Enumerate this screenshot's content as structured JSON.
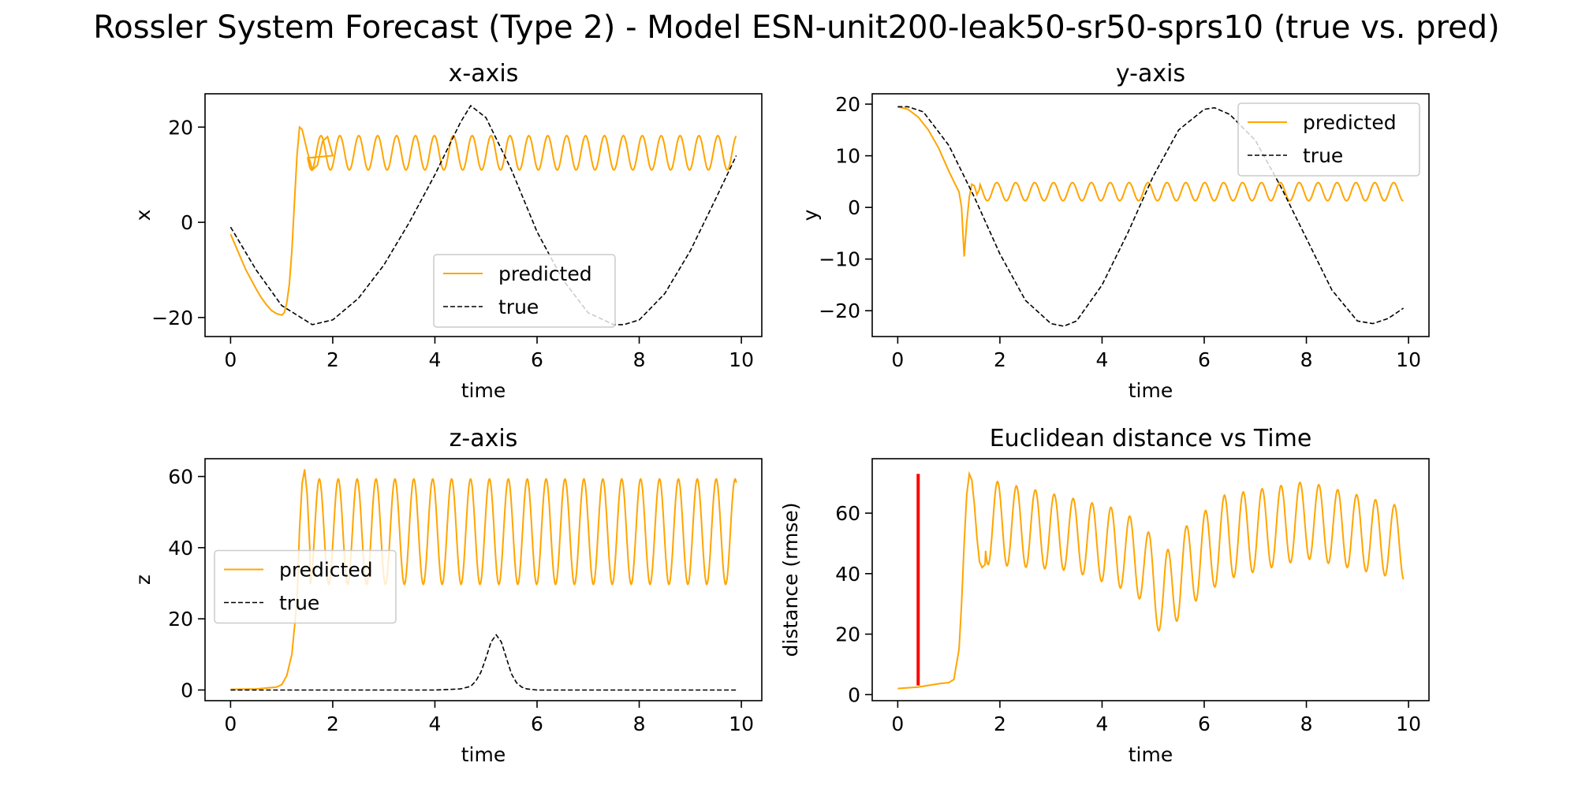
{
  "figure": {
    "title": "Rossler System Forecast (Type 2) - Model ESN-unit200-leak50-sr50-sprs10 (true vs. pred)"
  },
  "colors": {
    "predicted": "#FFA500",
    "true": "#000000",
    "marker": "#FF0000"
  },
  "chart_data": [
    {
      "type": "line",
      "title": "x-axis",
      "xlabel": "time",
      "ylabel": "x",
      "xlim": [
        -0.5,
        10.4
      ],
      "ylim": [
        -24,
        27
      ],
      "xticks": [
        0,
        2,
        4,
        6,
        8,
        10
      ],
      "yticks": [
        -20,
        0,
        20
      ],
      "legend": "lower-center",
      "series": [
        {
          "name": "predicted",
          "color": "#FFA500",
          "style": "solid",
          "x": [
            0,
            0.1,
            0.2,
            0.3,
            0.4,
            0.5,
            0.6,
            0.7,
            0.8,
            0.9,
            1.0,
            1.05,
            1.1,
            1.15,
            1.2,
            1.25,
            1.3,
            1.35,
            1.4,
            1.5,
            1.6,
            1.7,
            1.8,
            1.9,
            2.0
          ],
          "y": [
            -2.5,
            -5,
            -7.5,
            -10,
            -12,
            -14,
            -15.8,
            -17.3,
            -18.5,
            -19.2,
            -19.5,
            -19,
            -17,
            -13,
            -6,
            4,
            14,
            20,
            19.5,
            15,
            11,
            12,
            17,
            18,
            14
          ],
          "osc": {
            "from": 1.5,
            "to": 9.9,
            "center": 14.6,
            "amp": 3.6,
            "period": 0.37,
            "phase": 1.7
          }
        },
        {
          "name": "true",
          "color": "#000000",
          "style": "dashed",
          "x": [
            0,
            0.5,
            1.0,
            1.6,
            2.0,
            2.5,
            3.0,
            3.5,
            4.0,
            4.5,
            4.7,
            5.0,
            5.5,
            6.0,
            6.5,
            7.0,
            7.5,
            7.7,
            8.0,
            8.5,
            9.0,
            9.5,
            9.9
          ],
          "y": [
            -1,
            -10,
            -17.5,
            -21.5,
            -20.5,
            -16,
            -9,
            0,
            10,
            21,
            24.5,
            22,
            11,
            -2,
            -12,
            -19,
            -21.5,
            -21.5,
            -20.5,
            -15,
            -6,
            5,
            14
          ]
        }
      ]
    },
    {
      "type": "line",
      "title": "y-axis",
      "xlabel": "time",
      "ylabel": "y",
      "xlim": [
        -0.5,
        10.4
      ],
      "ylim": [
        -25,
        22
      ],
      "xticks": [
        0,
        2,
        4,
        6,
        8,
        10
      ],
      "yticks": [
        -20,
        -10,
        0,
        10,
        20
      ],
      "legend": "upper-right",
      "series": [
        {
          "name": "predicted",
          "color": "#FFA500",
          "style": "solid",
          "x": [
            0,
            0.2,
            0.4,
            0.6,
            0.8,
            1.0,
            1.1,
            1.2,
            1.25,
            1.3,
            1.35,
            1.4,
            1.45,
            1.5,
            1.55,
            1.6
          ],
          "y": [
            19.5,
            19,
            17.5,
            15,
            11.5,
            7,
            5,
            3,
            0,
            -9.5,
            -3,
            2,
            4.5,
            4.2,
            2.5,
            3.5
          ],
          "osc": {
            "from": 1.6,
            "to": 9.9,
            "center": 3.05,
            "amp": 1.75,
            "period": 0.37,
            "phase": 0.5
          }
        },
        {
          "name": "true",
          "color": "#000000",
          "style": "dashed",
          "x": [
            0,
            0.2,
            0.5,
            1.0,
            1.5,
            2.0,
            2.5,
            3.0,
            3.25,
            3.5,
            4.0,
            4.5,
            5.0,
            5.5,
            6.0,
            6.2,
            6.5,
            7.0,
            7.5,
            8.0,
            8.5,
            9.0,
            9.3,
            9.6,
            9.9
          ],
          "y": [
            19.5,
            19.5,
            18.5,
            12,
            2,
            -9,
            -18,
            -22.5,
            -23,
            -22,
            -15,
            -5,
            6,
            15,
            19,
            19.3,
            18,
            13,
            4,
            -6,
            -16,
            -22,
            -22.5,
            -21.5,
            -19.5
          ]
        }
      ]
    },
    {
      "type": "line",
      "title": "z-axis",
      "xlabel": "time",
      "ylabel": "z",
      "xlim": [
        -0.5,
        10.4
      ],
      "ylim": [
        -3,
        65
      ],
      "xticks": [
        0,
        2,
        4,
        6,
        8,
        10
      ],
      "yticks": [
        0,
        20,
        40,
        60
      ],
      "legend": "center-left",
      "series": [
        {
          "name": "predicted",
          "color": "#FFA500",
          "style": "solid",
          "x": [
            0,
            0.5,
            0.9,
            1.0,
            1.1,
            1.2,
            1.3,
            1.35,
            1.4,
            1.45,
            1.5,
            1.55
          ],
          "y": [
            0.2,
            0.3,
            0.8,
            1.5,
            4,
            10,
            25,
            45,
            58,
            62,
            55,
            40
          ],
          "osc": {
            "from": 1.55,
            "to": 9.9,
            "center": 44.5,
            "amp": 14.8,
            "period": 0.37,
            "phase": 3.1
          }
        },
        {
          "name": "true",
          "color": "#000000",
          "style": "dashed",
          "x": [
            0,
            1,
            2,
            3,
            4,
            4.5,
            4.7,
            4.8,
            4.9,
            5.0,
            5.1,
            5.2,
            5.3,
            5.4,
            5.5,
            5.6,
            5.7,
            5.8,
            6.0,
            7,
            8,
            9,
            9.9
          ],
          "y": [
            0,
            0,
            0,
            0,
            0,
            0.3,
            1,
            2.5,
            5,
            9,
            13.5,
            15.5,
            13.5,
            9,
            4.5,
            2,
            0.8,
            0.3,
            0,
            0,
            0,
            0,
            0
          ]
        }
      ]
    },
    {
      "type": "line",
      "title": "Euclidean distance vs Time",
      "xlabel": "time",
      "ylabel": "distance (rmse)",
      "xlim": [
        -0.5,
        10.4
      ],
      "ylim": [
        -2,
        78
      ],
      "xticks": [
        0,
        2,
        4,
        6,
        8,
        10
      ],
      "yticks": [
        0,
        20,
        40,
        60
      ],
      "legend": "none",
      "series": [
        {
          "color": "#FFA500",
          "style": "solid",
          "x": [
            0,
            0.4,
            0.8,
            1.0,
            1.1,
            1.2,
            1.25,
            1.3,
            1.35,
            1.4,
            1.45,
            1.5,
            1.55,
            1.6,
            1.65,
            1.71
          ],
          "y": [
            2,
            2.5,
            3.6,
            4,
            5,
            15,
            30,
            50,
            66,
            73,
            71,
            63,
            52,
            44,
            42,
            43
          ],
          "osc": {
            "from": 1.71,
            "to": 9.9,
            "period": 0.37,
            "phase": 2.14,
            "hi": [
              [
                1.8,
                71
              ],
              [
                3.4,
                65
              ],
              [
                4.4,
                61
              ],
              [
                4.9,
                54
              ],
              [
                5.2,
                46
              ],
              [
                5.6,
                55
              ],
              [
                6.4,
                66
              ],
              [
                8.0,
                70.5
              ],
              [
                9.9,
                62
              ]
            ],
            "lo": [
              [
                1.8,
                43
              ],
              [
                3.4,
                41
              ],
              [
                4.4,
                35
              ],
              [
                4.9,
                30
              ],
              [
                5.2,
                17
              ],
              [
                5.6,
                28
              ],
              [
                6.4,
                38
              ],
              [
                8.0,
                45
              ],
              [
                9.9,
                38
              ]
            ]
          }
        },
        {
          "color": "#FF0000",
          "style": "marker",
          "x": [
            0.4,
            0.4
          ],
          "y": [
            3,
            73
          ]
        }
      ]
    }
  ]
}
